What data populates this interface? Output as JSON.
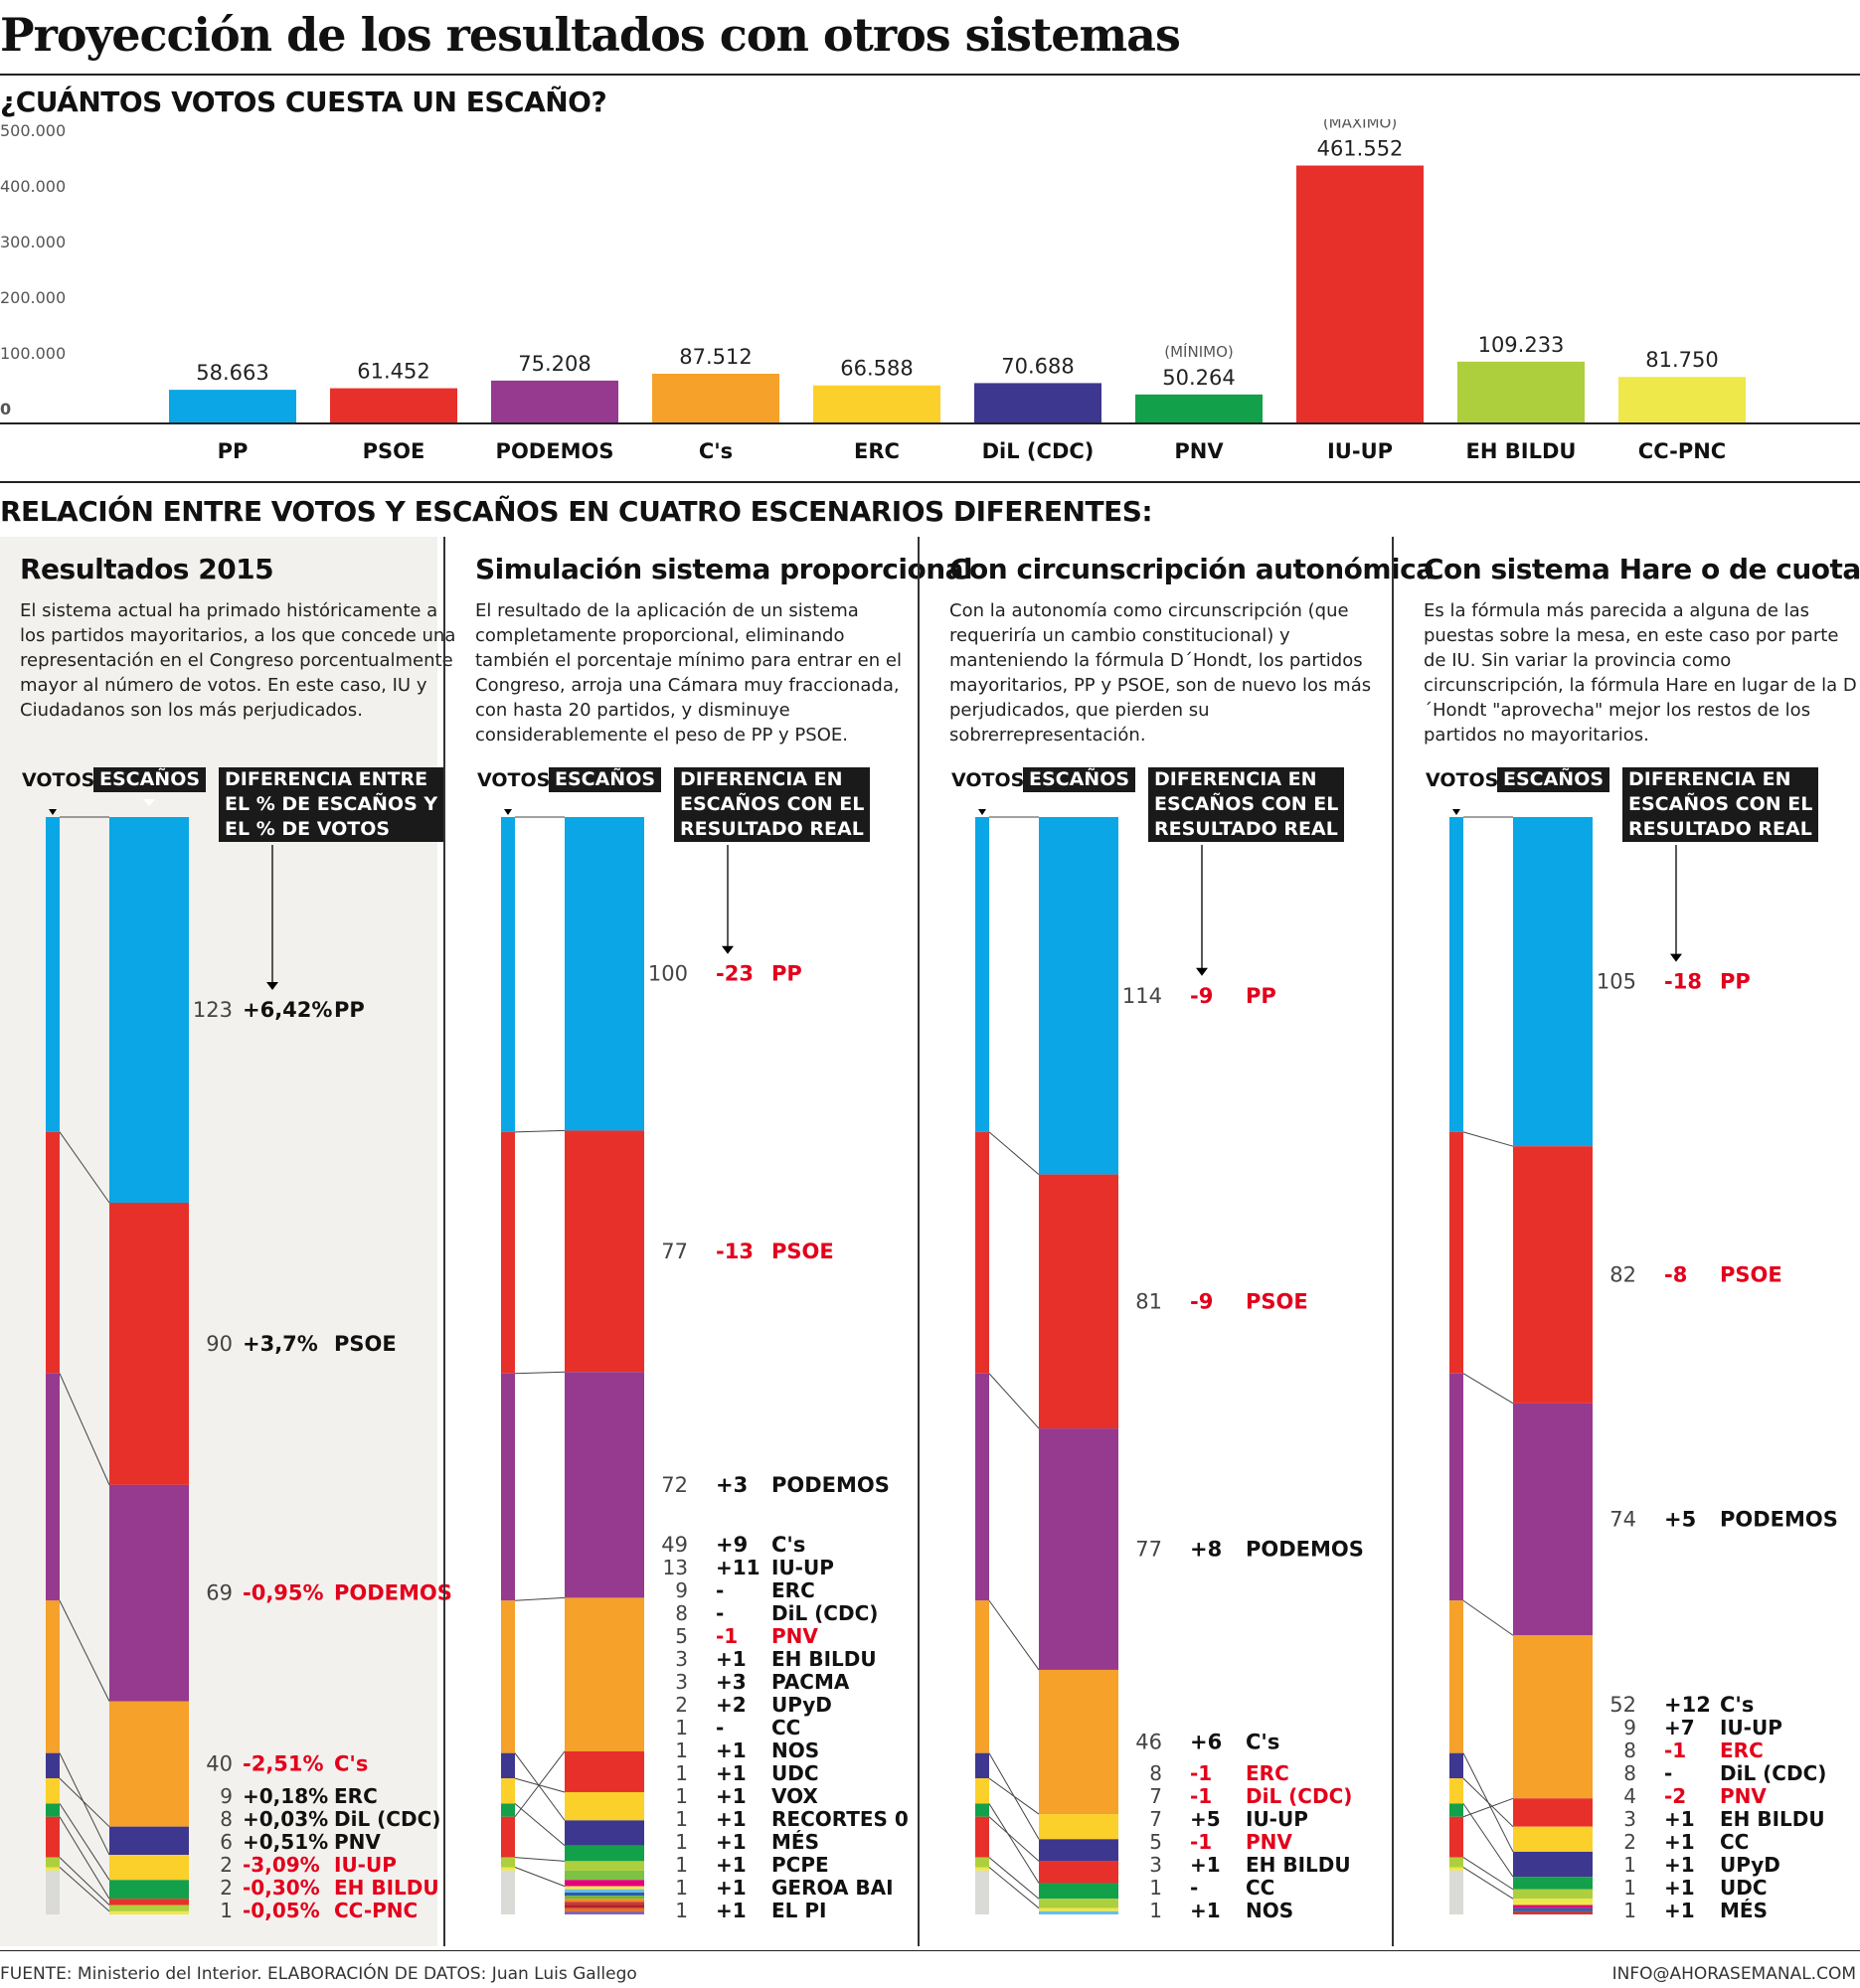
{
  "title": "Proyección de los resultados con otros sistemas",
  "section1_title": "¿CUÁNTOS VOTOS CUESTA UN ESCAÑO?",
  "section2_title": "RELACIÓN ENTRE VOTOS Y ESCAÑOS EN CUATRO ESCENARIOS DIFERENTES:",
  "footer_left": "FUENTE: Ministerio del Interior. ELABORACIÓN DE DATOS: Juan Luis Gallego",
  "footer_right": "INFO@AHORASEMANAL.COM",
  "colors": {
    "PP": "#0aa6e6",
    "PSOE": "#e8302a",
    "PODEMOS": "#953a8f",
    "Cs": "#f5a12a",
    "ERC": "#fbd02a",
    "DiL": "#3e3790",
    "PNV": "#13a04a",
    "IUUP": "#e8302a",
    "EHBILDU": "#aecf3d",
    "CCPNC": "#eee84a",
    "other": "#dadad6",
    "red_text": "#e3001b"
  },
  "chart_data": [
    {
      "type": "bar",
      "title": "¿CUÁNTOS VOTOS CUESTA UN ESCAÑO?",
      "categories": [
        "PP",
        "PSOE",
        "PODEMOS",
        "C's",
        "ERC",
        "DiL (CDC)",
        "PNV",
        "IU-UP",
        "EH BILDU",
        "CC-PNC"
      ],
      "values": [
        58663,
        61452,
        75208,
        87512,
        66588,
        70688,
        50264,
        461552,
        109233,
        81750
      ],
      "value_labels": [
        "58.663",
        "61.452",
        "75.208",
        "87.512",
        "66.588",
        "70.688",
        "50.264",
        "461.552",
        "109.233",
        "81.750"
      ],
      "colors": [
        "#0aa6e6",
        "#e8302a",
        "#953a8f",
        "#f5a12a",
        "#fbd02a",
        "#3e3790",
        "#13a04a",
        "#e8302a",
        "#aecf3d",
        "#eee84a"
      ],
      "yticks": [
        "0",
        "100.000",
        "200.000",
        "300.000",
        "400.000",
        "500.000"
      ],
      "ylim": [
        0,
        500000
      ],
      "annotations": [
        {
          "category": "PNV",
          "text": "(MÍNIMO)"
        },
        {
          "category": "IU-UP",
          "text": "(MÁXIMO)"
        }
      ]
    }
  ],
  "vote_bar": {
    "label": "VOTOS",
    "segments": [
      {
        "party": "PP",
        "share": 28.7,
        "color": "#0aa6e6"
      },
      {
        "party": "PSOE",
        "share": 22.0,
        "color": "#e8302a"
      },
      {
        "party": "PODEMOS",
        "share": 20.7,
        "color": "#953a8f"
      },
      {
        "party": "C's",
        "share": 13.9,
        "color": "#f5a12a"
      },
      {
        "party": "DiL (CDC)",
        "share": 2.3,
        "color": "#3e3790"
      },
      {
        "party": "ERC",
        "share": 2.3,
        "color": "#fbd02a"
      },
      {
        "party": "PNV",
        "share": 1.2,
        "color": "#13a04a"
      },
      {
        "party": "IU-UP",
        "share": 3.7,
        "color": "#e8302a"
      },
      {
        "party": "EH BILDU",
        "share": 0.9,
        "color": "#aecf3d"
      },
      {
        "party": "CC-PNC",
        "share": 0.3,
        "color": "#eee84a"
      },
      {
        "party": "Otros",
        "share": 4.0,
        "color": "#dadad6"
      }
    ]
  },
  "panels": [
    {
      "title": "Resultados 2015",
      "description": "El sistema actual ha primado históricamente a los partidos mayoritarios, a los que concede una representación en el Congreso porcentualmente mayor al número de votos. En este caso, IU y Ciudadanos son los más perjudicados.",
      "votes_label": "VOTOS",
      "seats_label": "ESCAÑOS",
      "diff_label": "DIFERENCIA ENTRE\nEL % DE ESCAÑOS Y\nEL % DE VOTOS",
      "seats": [
        {
          "party": "PP",
          "seats": 123,
          "diff": "+6,42%",
          "color": "#0aa6e6",
          "neg": false
        },
        {
          "party": "PSOE",
          "seats": 90,
          "diff": "+3,7%",
          "color": "#e8302a",
          "neg": false
        },
        {
          "party": "PODEMOS",
          "seats": 69,
          "diff": "-0,95%",
          "color": "#953a8f",
          "neg": true
        },
        {
          "party": "C's",
          "seats": 40,
          "diff": "-2,51%",
          "color": "#f5a12a",
          "neg": true
        },
        {
          "party": "ERC",
          "seats": 9,
          "diff": "+0,18%",
          "color": "#3e3790",
          "neg": false
        },
        {
          "party": "DiL (CDC)",
          "seats": 8,
          "diff": "+0,03%",
          "color": "#fbd02a",
          "neg": false
        },
        {
          "party": "PNV",
          "seats": 6,
          "diff": "+0,51%",
          "color": "#13a04a",
          "neg": false
        },
        {
          "party": "IU-UP",
          "seats": 2,
          "diff": "-3,09%",
          "color": "#e8302a",
          "neg": true
        },
        {
          "party": "EH BILDU",
          "seats": 2,
          "diff": "-0,30%",
          "color": "#aecf3d",
          "neg": true
        },
        {
          "party": "CC-PNC",
          "seats": 1,
          "diff": "-0,05%",
          "color": "#eee84a",
          "neg": true
        }
      ]
    },
    {
      "title": "Simulación sistema proporcional",
      "description": "El resultado de la aplicación de un sistema completamente proporcional, eliminando también el porcentaje mínimo para entrar en el Congreso, arroja una Cámara muy fraccionada, con hasta 20 partidos, y disminuye considerablemente el peso de PP y PSOE.",
      "votes_label": "VOTOS",
      "seats_label": "ESCAÑOS",
      "diff_label": "DIFERENCIA EN\nESCAÑOS CON EL\nRESULTADO REAL",
      "seats": [
        {
          "party": "PP",
          "seats": 100,
          "diff": "-23",
          "color": "#0aa6e6",
          "neg": true
        },
        {
          "party": "PSOE",
          "seats": 77,
          "diff": "-13",
          "color": "#e8302a",
          "neg": true
        },
        {
          "party": "PODEMOS",
          "seats": 72,
          "diff": "+3",
          "color": "#953a8f",
          "neg": false
        },
        {
          "party": "C's",
          "seats": 49,
          "diff": "+9",
          "color": "#f5a12a",
          "neg": false
        },
        {
          "party": "IU-UP",
          "seats": 13,
          "diff": "+11",
          "color": "#e8302a",
          "neg": false
        },
        {
          "party": "ERC",
          "seats": 9,
          "diff": "-",
          "color": "#fbd02a",
          "neg": false
        },
        {
          "party": "DiL (CDC)",
          "seats": 8,
          "diff": "-",
          "color": "#3e3790",
          "neg": false
        },
        {
          "party": "PNV",
          "seats": 5,
          "diff": "-1",
          "color": "#13a04a",
          "neg": true
        },
        {
          "party": "EH BILDU",
          "seats": 3,
          "diff": "+1",
          "color": "#aecf3d",
          "neg": false
        },
        {
          "party": "PACMA",
          "seats": 3,
          "diff": "+3",
          "color": "#7dc242",
          "neg": false
        },
        {
          "party": "UPyD",
          "seats": 2,
          "diff": "+2",
          "color": "#e4007c",
          "neg": false
        },
        {
          "party": "CC",
          "seats": 1,
          "diff": "-",
          "color": "#eee84a",
          "neg": false
        },
        {
          "party": "NOS",
          "seats": 1,
          "diff": "+1",
          "color": "#68bde8",
          "neg": false
        },
        {
          "party": "UDC",
          "seats": 1,
          "diff": "+1",
          "color": "#2a5da8",
          "neg": false
        },
        {
          "party": "VOX",
          "seats": 1,
          "diff": "+1",
          "color": "#6fb43f",
          "neg": false
        },
        {
          "party": "RECORTES 0",
          "seats": 1,
          "diff": "+1",
          "color": "#f08a24",
          "neg": false
        },
        {
          "party": "MÉS",
          "seats": 1,
          "diff": "+1",
          "color": "#c43a3a",
          "neg": false
        },
        {
          "party": "PCPE",
          "seats": 1,
          "diff": "+1",
          "color": "#b0212a",
          "neg": false
        },
        {
          "party": "GEROA BAI",
          "seats": 1,
          "diff": "+1",
          "color": "#e56e1c",
          "neg": false
        },
        {
          "party": "EL PI",
          "seats": 1,
          "diff": "+1",
          "color": "#8a62b0",
          "neg": false
        }
      ]
    },
    {
      "title": "Con circunscripción autonómica",
      "description": "Con la autonomía como circunscripción (que requeriría un cambio constitucional) y manteniendo la fórmula D´Hondt, los partidos mayoritarios, PP y PSOE, son de nuevo los más perjudicados, que pierden su sobrerrepresentación.",
      "votes_label": "VOTOS",
      "seats_label": "ESCAÑOS",
      "diff_label": "DIFERENCIA EN\nESCAÑOS CON EL\nRESULTADO REAL",
      "seats": [
        {
          "party": "PP",
          "seats": 114,
          "diff": "-9",
          "color": "#0aa6e6",
          "neg": true
        },
        {
          "party": "PSOE",
          "seats": 81,
          "diff": "-9",
          "color": "#e8302a",
          "neg": true
        },
        {
          "party": "PODEMOS",
          "seats": 77,
          "diff": "+8",
          "color": "#953a8f",
          "neg": false
        },
        {
          "party": "C's",
          "seats": 46,
          "diff": "+6",
          "color": "#f5a12a",
          "neg": false
        },
        {
          "party": "ERC",
          "seats": 8,
          "diff": "-1",
          "color": "#fbd02a",
          "neg": true
        },
        {
          "party": "DiL (CDC)",
          "seats": 7,
          "diff": "-1",
          "color": "#3e3790",
          "neg": true
        },
        {
          "party": "IU-UP",
          "seats": 7,
          "diff": "+5",
          "color": "#e8302a",
          "neg": false
        },
        {
          "party": "PNV",
          "seats": 5,
          "diff": "-1",
          "color": "#13a04a",
          "neg": true
        },
        {
          "party": "EH BILDU",
          "seats": 3,
          "diff": "+1",
          "color": "#aecf3d",
          "neg": false
        },
        {
          "party": "CC",
          "seats": 1,
          "diff": "-",
          "color": "#eee84a",
          "neg": false
        },
        {
          "party": "NOS",
          "seats": 1,
          "diff": "+1",
          "color": "#68bde8",
          "neg": false
        }
      ]
    },
    {
      "title": "Con sistema Hare o de cuotas",
      "description": "Es la fórmula más parecida a alguna de las puestas sobre la mesa, en este caso por parte de IU. Sin variar la provincia como circunscripción, la fórmula Hare en lugar de la D´Hondt \"aprovecha\" mejor los restos de los partidos no mayoritarios.",
      "votes_label": "VOTOS",
      "seats_label": "ESCAÑOS",
      "diff_label": "DIFERENCIA EN\nESCAÑOS CON EL\nRESULTADO REAL",
      "seats": [
        {
          "party": "PP",
          "seats": 105,
          "diff": "-18",
          "color": "#0aa6e6",
          "neg": true
        },
        {
          "party": "PSOE",
          "seats": 82,
          "diff": "-8",
          "color": "#e8302a",
          "neg": true
        },
        {
          "party": "PODEMOS",
          "seats": 74,
          "diff": "+5",
          "color": "#953a8f",
          "neg": false
        },
        {
          "party": "C's",
          "seats": 52,
          "diff": "+12",
          "color": "#f5a12a",
          "neg": false
        },
        {
          "party": "IU-UP",
          "seats": 9,
          "diff": "+7",
          "color": "#e8302a",
          "neg": false
        },
        {
          "party": "ERC",
          "seats": 8,
          "diff": "-1",
          "color": "#fbd02a",
          "neg": true
        },
        {
          "party": "DiL (CDC)",
          "seats": 8,
          "diff": "-",
          "color": "#3e3790",
          "neg": false
        },
        {
          "party": "PNV",
          "seats": 4,
          "diff": "-2",
          "color": "#13a04a",
          "neg": true
        },
        {
          "party": "EH BILDU",
          "seats": 3,
          "diff": "+1",
          "color": "#aecf3d",
          "neg": false
        },
        {
          "party": "CC",
          "seats": 2,
          "diff": "+1",
          "color": "#eee84a",
          "neg": false
        },
        {
          "party": "UPyD",
          "seats": 1,
          "diff": "+1",
          "color": "#e4007c",
          "neg": false
        },
        {
          "party": "UDC",
          "seats": 1,
          "diff": "+1",
          "color": "#2a5da8",
          "neg": false
        },
        {
          "party": "MÉS",
          "seats": 1,
          "diff": "+1",
          "color": "#c43a3a",
          "neg": false
        }
      ]
    }
  ]
}
